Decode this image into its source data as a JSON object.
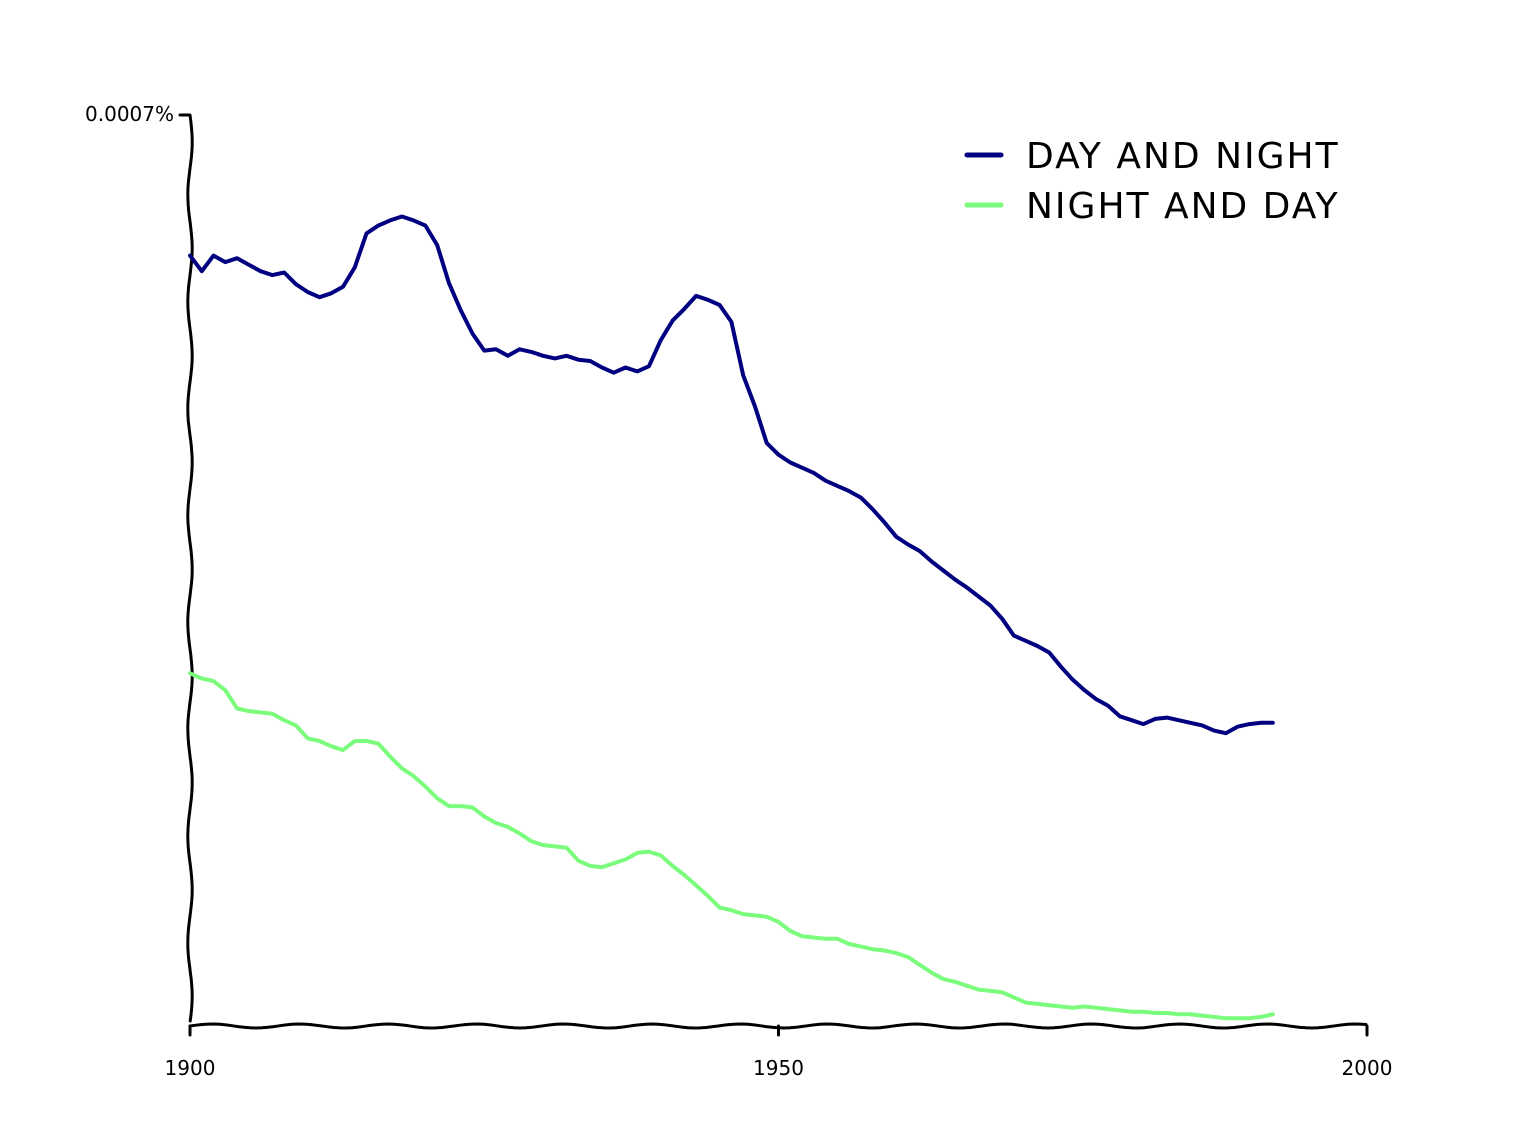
{
  "chart_data": {
    "type": "line",
    "title": "",
    "xlabel": "",
    "ylabel": "",
    "xlim": [
      1900,
      2000
    ],
    "ylim": [
      0,
      0.0007
    ],
    "x_ticks": [
      "1900",
      "1950",
      "2000"
    ],
    "y_tick_label": "0.0007%",
    "legend_position": "top-right",
    "grid": false,
    "series": [
      {
        "name": "DAY AND NIGHT",
        "color": "#000080",
        "points": [
          [
            1900,
            0.000592
          ],
          [
            1901,
            0.00058
          ],
          [
            1902,
            0.000592
          ],
          [
            1903,
            0.000587
          ],
          [
            1904,
            0.00059
          ],
          [
            1905,
            0.000585
          ],
          [
            1906,
            0.00058
          ],
          [
            1907,
            0.000577
          ],
          [
            1908,
            0.000579
          ],
          [
            1909,
            0.00057
          ],
          [
            1910,
            0.000564
          ],
          [
            1911,
            0.00056
          ],
          [
            1912,
            0.000563
          ],
          [
            1913,
            0.000568
          ],
          [
            1914,
            0.000583
          ],
          [
            1915,
            0.000609
          ],
          [
            1916,
            0.000615
          ],
          [
            1917,
            0.000619
          ],
          [
            1918,
            0.000622
          ],
          [
            1919,
            0.000619
          ],
          [
            1920,
            0.000615
          ],
          [
            1921,
            0.0006
          ],
          [
            1922,
            0.000571
          ],
          [
            1923,
            0.00055
          ],
          [
            1924,
            0.000532
          ],
          [
            1925,
            0.000519
          ],
          [
            1926,
            0.00052
          ],
          [
            1927,
            0.000515
          ],
          [
            1928,
            0.00052
          ],
          [
            1929,
            0.000518
          ],
          [
            1930,
            0.000515
          ],
          [
            1931,
            0.000513
          ],
          [
            1932,
            0.000515
          ],
          [
            1933,
            0.000512
          ],
          [
            1934,
            0.000511
          ],
          [
            1935,
            0.000506
          ],
          [
            1936,
            0.000502
          ],
          [
            1937,
            0.000506
          ],
          [
            1938,
            0.000503
          ],
          [
            1939,
            0.000507
          ],
          [
            1940,
            0.000527
          ],
          [
            1941,
            0.000542
          ],
          [
            1942,
            0.000551
          ],
          [
            1943,
            0.000561
          ],
          [
            1944,
            0.000558
          ],
          [
            1945,
            0.000554
          ],
          [
            1946,
            0.000541
          ],
          [
            1947,
            0.0005
          ],
          [
            1948,
            0.000476
          ],
          [
            1949,
            0.000448
          ],
          [
            1950,
            0.000439
          ],
          [
            1951,
            0.000433
          ],
          [
            1952,
            0.000429
          ],
          [
            1953,
            0.000425
          ],
          [
            1954,
            0.000419
          ],
          [
            1955,
            0.000415
          ],
          [
            1956,
            0.000411
          ],
          [
            1957,
            0.000406
          ],
          [
            1958,
            0.000397
          ],
          [
            1959,
            0.000387
          ],
          [
            1960,
            0.000376
          ],
          [
            1961,
            0.00037
          ],
          [
            1962,
            0.000365
          ],
          [
            1963,
            0.000357
          ],
          [
            1964,
            0.00035
          ],
          [
            1965,
            0.000343
          ],
          [
            1966,
            0.000337
          ],
          [
            1967,
            0.00033
          ],
          [
            1968,
            0.000323
          ],
          [
            1969,
            0.000313
          ],
          [
            1970,
            0.0003
          ],
          [
            1971,
            0.000296
          ],
          [
            1972,
            0.000292
          ],
          [
            1973,
            0.000287
          ],
          [
            1974,
            0.000276
          ],
          [
            1975,
            0.000266
          ],
          [
            1976,
            0.000258
          ],
          [
            1977,
            0.000251
          ],
          [
            1978,
            0.000246
          ],
          [
            1979,
            0.000238
          ],
          [
            1980,
            0.000235
          ],
          [
            1981,
            0.000232
          ],
          [
            1982,
            0.000236
          ],
          [
            1983,
            0.000237
          ],
          [
            1984,
            0.000235
          ],
          [
            1985,
            0.000233
          ],
          [
            1986,
            0.000231
          ],
          [
            1987,
            0.000227
          ],
          [
            1988,
            0.000225
          ],
          [
            1989,
            0.00023
          ],
          [
            1990,
            0.000232
          ],
          [
            1991,
            0.000233
          ],
          [
            1992,
            0.000233
          ]
        ]
      },
      {
        "name": "NIGHT AND DAY",
        "color": "#7cfc7c",
        "points": [
          [
            1900,
            0.000271
          ],
          [
            1901,
            0.000267
          ],
          [
            1902,
            0.000265
          ],
          [
            1903,
            0.000258
          ],
          [
            1904,
            0.000244
          ],
          [
            1905,
            0.000242
          ],
          [
            1906,
            0.000241
          ],
          [
            1907,
            0.00024
          ],
          [
            1908,
            0.000235
          ],
          [
            1909,
            0.000231
          ],
          [
            1910,
            0.000221
          ],
          [
            1911,
            0.000219
          ],
          [
            1912,
            0.000215
          ],
          [
            1913,
            0.000212
          ],
          [
            1914,
            0.000219
          ],
          [
            1915,
            0.000219
          ],
          [
            1916,
            0.000217
          ],
          [
            1917,
            0.000207
          ],
          [
            1918,
            0.000198
          ],
          [
            1919,
            0.000192
          ],
          [
            1920,
            0.000184
          ],
          [
            1921,
            0.000175
          ],
          [
            1922,
            0.000169
          ],
          [
            1923,
            0.000169
          ],
          [
            1924,
            0.000168
          ],
          [
            1925,
            0.000161
          ],
          [
            1926,
            0.000156
          ],
          [
            1927,
            0.000153
          ],
          [
            1928,
            0.000148
          ],
          [
            1929,
            0.000142
          ],
          [
            1930,
            0.000139
          ],
          [
            1931,
            0.000138
          ],
          [
            1932,
            0.000137
          ],
          [
            1933,
            0.000127
          ],
          [
            1934,
            0.000123
          ],
          [
            1935,
            0.000122
          ],
          [
            1936,
            0.000125
          ],
          [
            1937,
            0.000128
          ],
          [
            1938,
            0.000133
          ],
          [
            1939,
            0.000134
          ],
          [
            1940,
            0.000131
          ],
          [
            1941,
            0.000123
          ],
          [
            1942,
            0.000116
          ],
          [
            1943,
            0.000108
          ],
          [
            1944,
            0.0001
          ],
          [
            1945,
            9.1e-05
          ],
          [
            1946,
            8.9e-05
          ],
          [
            1947,
            8.6e-05
          ],
          [
            1948,
            8.5e-05
          ],
          [
            1949,
            8.4e-05
          ],
          [
            1950,
            8e-05
          ],
          [
            1951,
            7.3e-05
          ],
          [
            1952,
            6.9e-05
          ],
          [
            1953,
            6.8e-05
          ],
          [
            1954,
            6.7e-05
          ],
          [
            1955,
            6.7e-05
          ],
          [
            1956,
            6.3e-05
          ],
          [
            1957,
            6.1e-05
          ],
          [
            1958,
            5.9e-05
          ],
          [
            1959,
            5.8e-05
          ],
          [
            1960,
            5.6e-05
          ],
          [
            1961,
            5.3e-05
          ],
          [
            1962,
            4.7e-05
          ],
          [
            1963,
            4.1e-05
          ],
          [
            1964,
            3.6e-05
          ],
          [
            1965,
            3.4e-05
          ],
          [
            1966,
            3.1e-05
          ],
          [
            1967,
            2.8e-05
          ],
          [
            1968,
            2.7e-05
          ],
          [
            1969,
            2.6e-05
          ],
          [
            1970,
            2.2e-05
          ],
          [
            1971,
            1.8e-05
          ],
          [
            1972,
            1.7e-05
          ],
          [
            1973,
            1.6e-05
          ],
          [
            1974,
            1.5e-05
          ],
          [
            1975,
            1.4e-05
          ],
          [
            1976,
            1.5e-05
          ],
          [
            1977,
            1.4e-05
          ],
          [
            1978,
            1.3e-05
          ],
          [
            1979,
            1.2e-05
          ],
          [
            1980,
            1.1e-05
          ],
          [
            1981,
            1.1e-05
          ],
          [
            1982,
            1e-05
          ],
          [
            1983,
            1e-05
          ],
          [
            1984,
            9e-06
          ],
          [
            1985,
            9e-06
          ],
          [
            1986,
            8e-06
          ],
          [
            1987,
            7e-06
          ],
          [
            1988,
            6e-06
          ],
          [
            1989,
            6e-06
          ],
          [
            1990,
            6e-06
          ],
          [
            1991,
            7e-06
          ],
          [
            1992,
            9e-06
          ]
        ]
      }
    ]
  }
}
